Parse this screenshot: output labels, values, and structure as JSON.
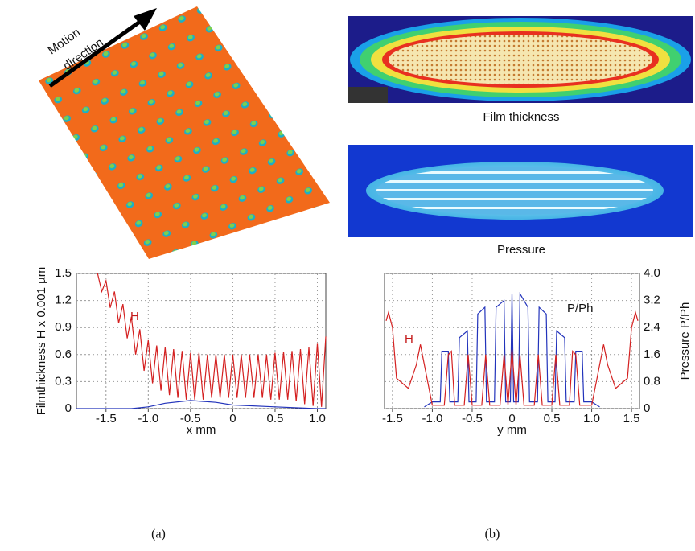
{
  "chart_data": [
    {
      "type": "line",
      "xlabel": "x mm",
      "ylabel": "Filmthickness H x 0.001 µm",
      "xlim": [
        -1.85,
        1.1
      ],
      "ylim": [
        0,
        1.5
      ],
      "xticks": [
        -1.5,
        {
          "value": -1,
          "label": "-1.0"
        },
        -0.5,
        0,
        0.5,
        {
          "value": 1,
          "label": "1.0"
        }
      ],
      "yticks": [
        0,
        0.3,
        0.6,
        0.9,
        1.2,
        1.5
      ],
      "grid": true,
      "annotations": [
        "H"
      ],
      "series": [
        {
          "color": "#d42020",
          "x": [
            -1.6,
            -1.55,
            -1.5,
            -1.45,
            -1.4,
            -1.35,
            -1.3,
            -1.25,
            -1.2,
            -1.15,
            -1.1,
            -1.05,
            -1.0,
            -0.95,
            -0.9,
            -0.85,
            -0.8,
            -0.75,
            -0.7,
            -0.65,
            -0.6,
            -0.55,
            -0.5,
            -0.45,
            -0.4,
            -0.35,
            -0.3,
            -0.25,
            -0.2,
            -0.15,
            -0.1,
            -0.05,
            0,
            0.05,
            0.1,
            0.15,
            0.2,
            0.25,
            0.3,
            0.35,
            0.4,
            0.45,
            0.5,
            0.55,
            0.6,
            0.65,
            0.7,
            0.75,
            0.8,
            0.85,
            0.9,
            0.95,
            1.0,
            1.05,
            1.1
          ],
          "values": [
            1.5,
            1.3,
            1.42,
            1.12,
            1.3,
            0.95,
            1.16,
            0.78,
            1.02,
            0.6,
            0.88,
            0.42,
            0.76,
            0.28,
            0.7,
            0.2,
            0.68,
            0.15,
            0.66,
            0.12,
            0.64,
            0.1,
            0.62,
            0.1,
            0.62,
            0.1,
            0.6,
            0.12,
            0.6,
            0.12,
            0.6,
            0.12,
            0.6,
            0.12,
            0.6,
            0.12,
            0.6,
            0.12,
            0.6,
            0.12,
            0.6,
            0.1,
            0.62,
            0.1,
            0.63,
            0.1,
            0.64,
            0.08,
            0.66,
            0.05,
            0.68,
            0.03,
            0.72,
            0.02,
            0.8
          ]
        },
        {
          "color": "#2233bb",
          "x": [
            -1.85,
            -1.2,
            -1.0,
            -0.8,
            -0.5,
            -0.2,
            0,
            0.5,
            1.0,
            1.1
          ],
          "values": [
            0,
            0,
            0.02,
            0.06,
            0.09,
            0.07,
            0.04,
            0.02,
            0,
            0
          ]
        }
      ]
    },
    {
      "type": "line",
      "xlabel": "y mm",
      "y2label": "Pressure P/Ph",
      "xlim": [
        -1.6,
        1.6
      ],
      "y2lim": [
        0,
        4
      ],
      "xticks": [
        -1.5,
        {
          "value": -1,
          "label": "-1.0"
        },
        -0.5,
        0,
        0.5,
        {
          "value": 1,
          "label": "1.0"
        },
        1.5
      ],
      "y2ticks": [
        0,
        0.8,
        1.6,
        2.4,
        3.2,
        {
          "value": 4,
          "label": "4.0"
        }
      ],
      "grid": true,
      "annotations": [
        "P/Ph",
        "H"
      ],
      "series": [
        {
          "color": "#2233bb",
          "axis": "y2",
          "x": [
            -1.1,
            -1.0,
            -0.9,
            -0.88,
            -0.8,
            -0.78,
            -0.68,
            -0.66,
            -0.56,
            -0.54,
            -0.45,
            -0.43,
            -0.34,
            -0.32,
            -0.22,
            -0.2,
            -0.1,
            -0.08,
            -0.02,
            0,
            0.02,
            0.08,
            0.1,
            0.2,
            0.22,
            0.32,
            0.34,
            0.43,
            0.45,
            0.54,
            0.56,
            0.66,
            0.68,
            0.78,
            0.8,
            0.88,
            0.9,
            1.0,
            1.1
          ],
          "values": [
            0.05,
            0.2,
            0.2,
            1.7,
            1.7,
            0.2,
            0.2,
            2.1,
            2.3,
            0.2,
            0.2,
            2.8,
            3.0,
            0.2,
            0.2,
            3.0,
            3.2,
            0.2,
            0.2,
            3.4,
            0.2,
            0.2,
            3.4,
            3.0,
            0.2,
            0.2,
            3.0,
            2.8,
            0.2,
            0.2,
            2.3,
            2.1,
            0.2,
            0.2,
            1.7,
            1.7,
            0.2,
            0.2,
            0.05
          ]
        },
        {
          "color": "#d42020",
          "axis": "y2",
          "x": [
            -1.58,
            -1.55,
            -1.5,
            -1.45,
            -1.3,
            -1.2,
            -1.15,
            -1.1,
            -1.0,
            -0.85,
            -0.8,
            -0.76,
            -0.72,
            -0.6,
            -0.55,
            -0.5,
            -0.38,
            -0.33,
            -0.28,
            -0.15,
            -0.1,
            -0.05,
            0,
            0.05,
            0.1,
            0.15,
            0.28,
            0.33,
            0.38,
            0.5,
            0.55,
            0.6,
            0.72,
            0.76,
            0.8,
            0.85,
            1.0,
            1.1,
            1.15,
            1.2,
            1.3,
            1.45,
            1.5,
            1.55,
            1.58
          ],
          "values": [
            2.6,
            2.85,
            2.4,
            0.9,
            0.6,
            1.3,
            1.9,
            1.3,
            0.1,
            0.1,
            1.6,
            1.7,
            0.1,
            0.1,
            1.6,
            0.1,
            0.1,
            1.6,
            0.1,
            0.1,
            1.6,
            0.1,
            1.75,
            0.1,
            1.6,
            0.1,
            0.1,
            1.6,
            0.1,
            0.1,
            1.6,
            0.1,
            0.1,
            1.7,
            1.6,
            0.1,
            0.1,
            1.3,
            1.9,
            1.3,
            0.6,
            0.9,
            2.4,
            2.85,
            2.6
          ]
        }
      ]
    }
  ],
  "panel": {
    "motion": [
      "Motion",
      "direction"
    ],
    "film": "Film thickness",
    "pressure": "Pressure",
    "captions": [
      "(a)",
      "(b)"
    ]
  }
}
